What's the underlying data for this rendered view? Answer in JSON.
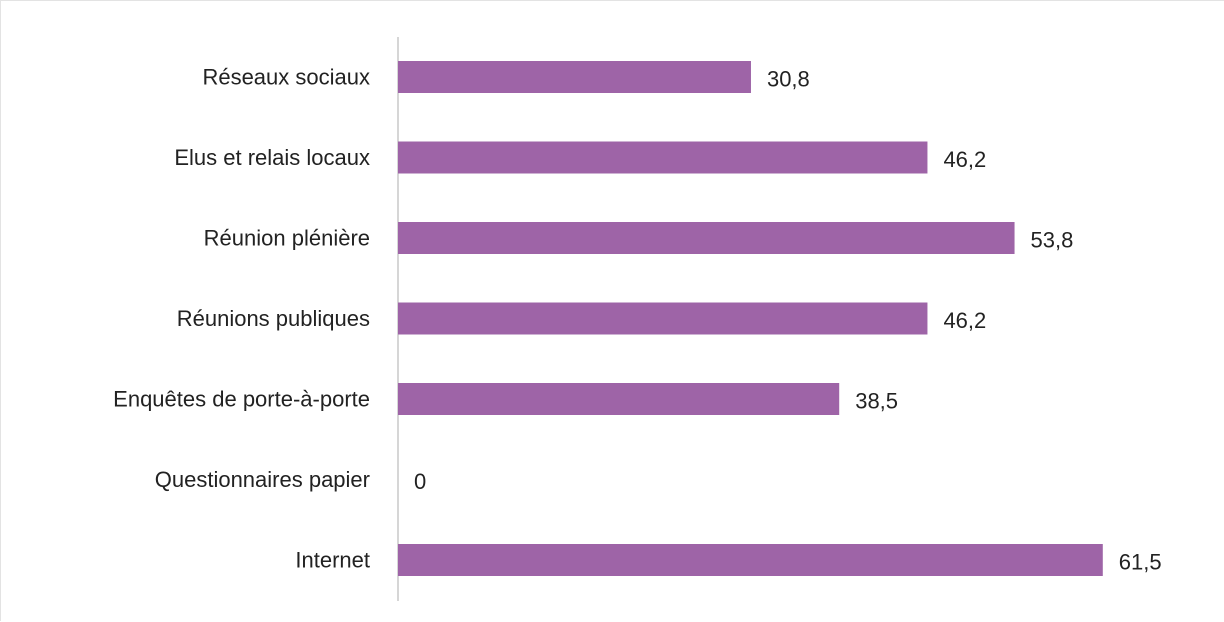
{
  "chart_data": {
    "type": "bar",
    "orientation": "horizontal",
    "categories": [
      "Réseaux sociaux",
      "Elus et relais locaux",
      "Réunion plénière",
      "Réunions publiques",
      "Enquêtes de porte-à-porte",
      "Questionnaires papier",
      "Internet"
    ],
    "values": [
      30.8,
      46.2,
      53.8,
      46.2,
      38.5,
      0,
      61.5
    ],
    "value_labels": [
      "30,8",
      "46,2",
      "53,8",
      "46,2",
      "38,5",
      "0",
      "61,5"
    ],
    "xlim": [
      0,
      70
    ],
    "grid": false,
    "legend": "none",
    "bar_color": "#9e64a7",
    "axis_color": "#d6d6d6"
  }
}
